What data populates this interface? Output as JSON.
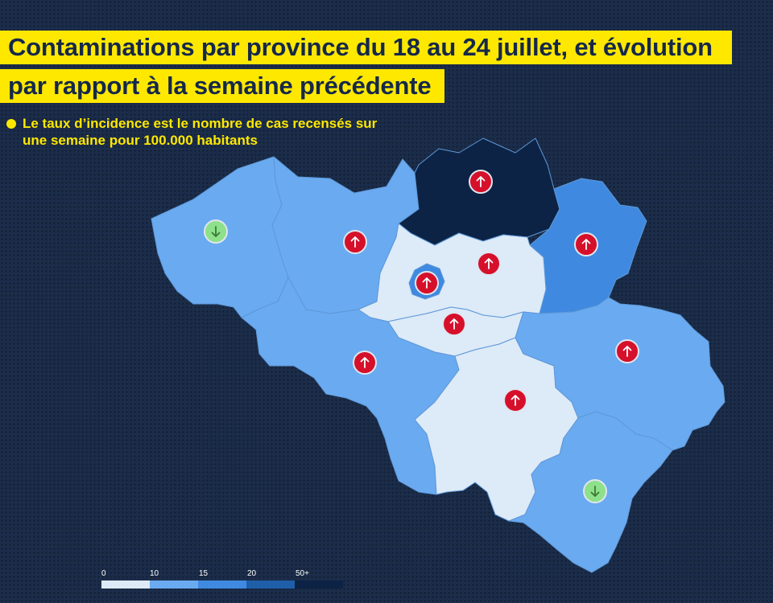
{
  "title": {
    "line1": "Contaminations par province du 18 au 24 juillet, et évolution",
    "line2": "par rapport à la semaine précédente"
  },
  "note": "Le taux d’incidence est le nombre de cas recensés sur une semaine pour 100.000 habitants",
  "colors": {
    "background": "#1b2d4a",
    "highlight": "#ffe800",
    "bucket_0": "#ddeaf8",
    "bucket_10": "#6aaaf0",
    "bucket_15": "#3f8ae0",
    "bucket_20": "#1f5ea8",
    "bucket_50": "#0d2345",
    "increase_marker": "#d6102b",
    "decrease_marker": "#8ee08a"
  },
  "legend": {
    "ticks": [
      "0",
      "10",
      "15",
      "20",
      "50+"
    ]
  },
  "map": {
    "provinces": [
      {
        "id": "west-flanders",
        "bucket": "10",
        "trend": "down"
      },
      {
        "id": "east-flanders",
        "bucket": "10",
        "trend": "up"
      },
      {
        "id": "antwerp",
        "bucket": "50+",
        "trend": "up"
      },
      {
        "id": "limburg",
        "bucket": "15",
        "trend": "up"
      },
      {
        "id": "flemish-brabant",
        "bucket": "0",
        "trend": "up"
      },
      {
        "id": "brussels",
        "bucket": "15",
        "trend": "up"
      },
      {
        "id": "walloon-brabant",
        "bucket": "0",
        "trend": "up"
      },
      {
        "id": "hainaut",
        "bucket": "10",
        "trend": "up"
      },
      {
        "id": "namur",
        "bucket": "0",
        "trend": "up"
      },
      {
        "id": "liege",
        "bucket": "10",
        "trend": "up"
      },
      {
        "id": "luxembourg",
        "bucket": "10",
        "trend": "down"
      }
    ]
  }
}
